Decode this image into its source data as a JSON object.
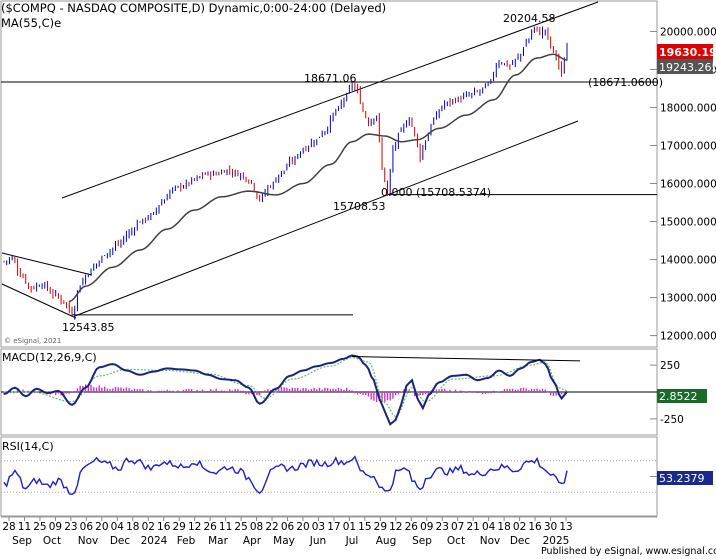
{
  "chart_data": [
    {
      "type": "candlestick",
      "title": "($COMPQ - NASDAQ COMPOSITE,D) Dynamic,0:00-24:00 (Delayed)",
      "indicator_label": "MA(55,C)e",
      "y_ticks": [
        12000,
        13000,
        14000,
        15000,
        16000,
        17000,
        18000,
        19000,
        20000
      ],
      "y_tick_labels": [
        "12000.0000",
        "13000.0000",
        "14000.0000",
        "15000.0000",
        "16000.0000",
        "17000.0000",
        "18000.0000",
        "19000.0000",
        "20000.0000"
      ],
      "ylim": [
        11700,
        20800
      ],
      "last_value_label": "19630.1987",
      "ma_value_label": "19243.2659",
      "level_label": "(18671.0600)",
      "annotations": [
        {
          "text": "20204.58",
          "value": 20204.58
        },
        {
          "text": "18671.06",
          "value": 18671.06
        },
        {
          "text": "15708.53",
          "value": 15708.53
        },
        {
          "text": "0.000 (15708.5374)",
          "value": 15708.5374
        },
        {
          "text": "12543.85",
          "value": 12543.85
        }
      ],
      "horizontal_lines": [
        18671.06,
        15708.53,
        12543.85
      ],
      "close_anchors": [
        [
          0,
          13950
        ],
        [
          3,
          14050
        ],
        [
          6,
          13600
        ],
        [
          10,
          13250
        ],
        [
          14,
          13350
        ],
        [
          18,
          13100
        ],
        [
          22,
          12900
        ],
        [
          25,
          12560
        ],
        [
          28,
          13350
        ],
        [
          31,
          13650
        ],
        [
          34,
          13900
        ],
        [
          38,
          14200
        ],
        [
          42,
          14400
        ],
        [
          46,
          14700
        ],
        [
          50,
          15000
        ],
        [
          54,
          15150
        ],
        [
          58,
          15500
        ],
        [
          62,
          15850
        ],
        [
          66,
          15950
        ],
        [
          70,
          16100
        ],
        [
          74,
          16250
        ],
        [
          78,
          16250
        ],
        [
          82,
          16350
        ],
        [
          86,
          16250
        ],
        [
          90,
          16100
        ],
        [
          94,
          15600
        ],
        [
          98,
          15950
        ],
        [
          102,
          16300
        ],
        [
          106,
          16600
        ],
        [
          110,
          16900
        ],
        [
          114,
          17100
        ],
        [
          118,
          17400
        ],
        [
          122,
          17900
        ],
        [
          126,
          18300
        ],
        [
          128,
          18650
        ],
        [
          130,
          18400
        ],
        [
          132,
          17900
        ],
        [
          134,
          17600
        ],
        [
          137,
          17800
        ],
        [
          139,
          16400
        ],
        [
          141,
          15750
        ],
        [
          143,
          16900
        ],
        [
          146,
          17400
        ],
        [
          149,
          17700
        ],
        [
          151,
          17300
        ],
        [
          153,
          16700
        ],
        [
          155,
          17150
        ],
        [
          158,
          17700
        ],
        [
          162,
          18100
        ],
        [
          166,
          18200
        ],
        [
          170,
          18300
        ],
        [
          174,
          18400
        ],
        [
          178,
          18600
        ],
        [
          182,
          19200
        ],
        [
          186,
          19100
        ],
        [
          189,
          19300
        ],
        [
          192,
          19700
        ],
        [
          195,
          20100
        ],
        [
          197,
          19950
        ],
        [
          199,
          20050
        ],
        [
          201,
          19600
        ],
        [
          203,
          19350
        ],
        [
          205,
          18850
        ],
        [
          207,
          19630
        ]
      ],
      "ma_anchors": [
        [
          24,
          12900
        ],
        [
          30,
          13300
        ],
        [
          40,
          13800
        ],
        [
          50,
          14250
        ],
        [
          60,
          14800
        ],
        [
          70,
          15300
        ],
        [
          80,
          15650
        ],
        [
          90,
          15800
        ],
        [
          100,
          15700
        ],
        [
          110,
          16000
        ],
        [
          120,
          16500
        ],
        [
          128,
          17100
        ],
        [
          134,
          17300
        ],
        [
          140,
          17250
        ],
        [
          146,
          17100
        ],
        [
          152,
          17150
        ],
        [
          160,
          17450
        ],
        [
          170,
          17800
        ],
        [
          180,
          18200
        ],
        [
          188,
          18850
        ],
        [
          196,
          19300
        ],
        [
          202,
          19400
        ],
        [
          207,
          19243
        ]
      ]
    },
    {
      "type": "line",
      "title": "MACD(12,26,9,C)",
      "y_ticks": [
        250,
        -250
      ],
      "y_tick_labels": [
        "250",
        "-250"
      ],
      "ylim": [
        -400,
        400
      ],
      "last_value_label": "2.8522",
      "macd_anchors": [
        [
          0,
          -20
        ],
        [
          4,
          40
        ],
        [
          8,
          -40
        ],
        [
          12,
          30
        ],
        [
          16,
          -10
        ],
        [
          20,
          10
        ],
        [
          25,
          -120
        ],
        [
          30,
          40
        ],
        [
          35,
          230
        ],
        [
          40,
          260
        ],
        [
          45,
          200
        ],
        [
          50,
          160
        ],
        [
          55,
          190
        ],
        [
          60,
          220
        ],
        [
          65,
          210
        ],
        [
          70,
          200
        ],
        [
          75,
          160
        ],
        [
          80,
          120
        ],
        [
          85,
          110
        ],
        [
          90,
          40
        ],
        [
          94,
          -110
        ],
        [
          100,
          30
        ],
        [
          105,
          150
        ],
        [
          110,
          200
        ],
        [
          115,
          240
        ],
        [
          120,
          270
        ],
        [
          125,
          310
        ],
        [
          128,
          340
        ],
        [
          130,
          330
        ],
        [
          133,
          250
        ],
        [
          136,
          110
        ],
        [
          138,
          -60
        ],
        [
          140,
          -180
        ],
        [
          142,
          -300
        ],
        [
          144,
          -260
        ],
        [
          146,
          -120
        ],
        [
          148,
          60
        ],
        [
          150,
          110
        ],
        [
          152,
          -60
        ],
        [
          154,
          -150
        ],
        [
          156,
          -30
        ],
        [
          160,
          90
        ],
        [
          165,
          150
        ],
        [
          170,
          160
        ],
        [
          174,
          110
        ],
        [
          178,
          130
        ],
        [
          182,
          200
        ],
        [
          186,
          150
        ],
        [
          190,
          220
        ],
        [
          194,
          280
        ],
        [
          197,
          300
        ],
        [
          199,
          260
        ],
        [
          202,
          100
        ],
        [
          205,
          -60
        ],
        [
          207,
          3
        ]
      ],
      "signal_anchors": [
        [
          0,
          0
        ],
        [
          10,
          0
        ],
        [
          25,
          -90
        ],
        [
          35,
          150
        ],
        [
          45,
          210
        ],
        [
          60,
          200
        ],
        [
          75,
          170
        ],
        [
          90,
          60
        ],
        [
          96,
          -60
        ],
        [
          106,
          120
        ],
        [
          120,
          240
        ],
        [
          128,
          320
        ],
        [
          134,
          280
        ],
        [
          140,
          -100
        ],
        [
          144,
          -230
        ],
        [
          150,
          40
        ],
        [
          155,
          -90
        ],
        [
          165,
          120
        ],
        [
          180,
          150
        ],
        [
          194,
          250
        ],
        [
          199,
          280
        ],
        [
          204,
          40
        ],
        [
          207,
          10
        ]
      ],
      "hist_anchors": [
        [
          0,
          -10
        ],
        [
          10,
          20
        ],
        [
          22,
          -30
        ],
        [
          30,
          60
        ],
        [
          40,
          40
        ],
        [
          55,
          10
        ],
        [
          70,
          20
        ],
        [
          85,
          20
        ],
        [
          92,
          -30
        ],
        [
          100,
          40
        ],
        [
          110,
          30
        ],
        [
          126,
          30
        ],
        [
          132,
          -30
        ],
        [
          138,
          -90
        ],
        [
          142,
          -70
        ],
        [
          148,
          40
        ],
        [
          152,
          -40
        ],
        [
          160,
          20
        ],
        [
          175,
          -10
        ],
        [
          188,
          30
        ],
        [
          197,
          30
        ],
        [
          203,
          -40
        ],
        [
          207,
          -10
        ]
      ]
    },
    {
      "type": "line",
      "title": "RSI(14,C)",
      "ylim": [
        0,
        100
      ],
      "last_value_label": "53.2379",
      "rsi_anchors": [
        [
          0,
          40
        ],
        [
          4,
          55
        ],
        [
          8,
          35
        ],
        [
          12,
          45
        ],
        [
          16,
          38
        ],
        [
          20,
          45
        ],
        [
          25,
          30
        ],
        [
          30,
          62
        ],
        [
          34,
          70
        ],
        [
          38,
          65
        ],
        [
          42,
          60
        ],
        [
          46,
          72
        ],
        [
          50,
          68
        ],
        [
          54,
          60
        ],
        [
          58,
          68
        ],
        [
          62,
          66
        ],
        [
          66,
          62
        ],
        [
          70,
          70
        ],
        [
          74,
          60
        ],
        [
          78,
          55
        ],
        [
          82,
          62
        ],
        [
          86,
          58
        ],
        [
          90,
          48
        ],
        [
          94,
          32
        ],
        [
          98,
          55
        ],
        [
          102,
          62
        ],
        [
          106,
          60
        ],
        [
          110,
          65
        ],
        [
          114,
          68
        ],
        [
          118,
          66
        ],
        [
          122,
          70
        ],
        [
          126,
          68
        ],
        [
          128,
          74
        ],
        [
          132,
          55
        ],
        [
          136,
          50
        ],
        [
          138,
          40
        ],
        [
          140,
          30
        ],
        [
          142,
          35
        ],
        [
          144,
          55
        ],
        [
          148,
          60
        ],
        [
          150,
          45
        ],
        [
          153,
          35
        ],
        [
          156,
          52
        ],
        [
          160,
          58
        ],
        [
          164,
          56
        ],
        [
          168,
          60
        ],
        [
          172,
          52
        ],
        [
          176,
          55
        ],
        [
          180,
          60
        ],
        [
          184,
          62
        ],
        [
          188,
          58
        ],
        [
          192,
          68
        ],
        [
          196,
          70
        ],
        [
          198,
          62
        ],
        [
          200,
          55
        ],
        [
          202,
          50
        ],
        [
          204,
          40
        ],
        [
          206,
          45
        ],
        [
          207,
          53
        ]
      ]
    }
  ],
  "x_axis": {
    "day_labels": [
      "28",
      "11",
      "25",
      "09",
      "23",
      "06",
      "20",
      "04",
      "18",
      "02",
      "16",
      "29",
      "12",
      "26",
      "11",
      "25",
      "08",
      "22",
      "06",
      "20",
      "03",
      "17",
      "01",
      "15",
      "29",
      "12",
      "26",
      "09",
      "23",
      "07",
      "21",
      "04",
      "18",
      "02",
      "16",
      "30",
      "13"
    ],
    "month_labels": [
      "Sep",
      "Oct",
      "Nov",
      "Dec",
      "2024",
      "Feb",
      "Mar",
      "Apr",
      "May",
      "Jun",
      "Jul",
      "Aug",
      "Sep",
      "Oct",
      "Nov",
      "Dec",
      "2025"
    ]
  },
  "watermark": "© eSignal, 2021",
  "footer": {
    "published_by": "Published by eSignal, www.esignal.com"
  },
  "colors": {
    "up": "#0000cc",
    "down": "#cc0000",
    "ma": "#404040",
    "macd": "#1a237e",
    "signal": "#66bb6a",
    "hist": "#cc33cc",
    "rsi": "#1f1fcc",
    "label_red": "#e00000",
    "label_dark": "#555555",
    "label_navy": "#1a2a8a"
  }
}
